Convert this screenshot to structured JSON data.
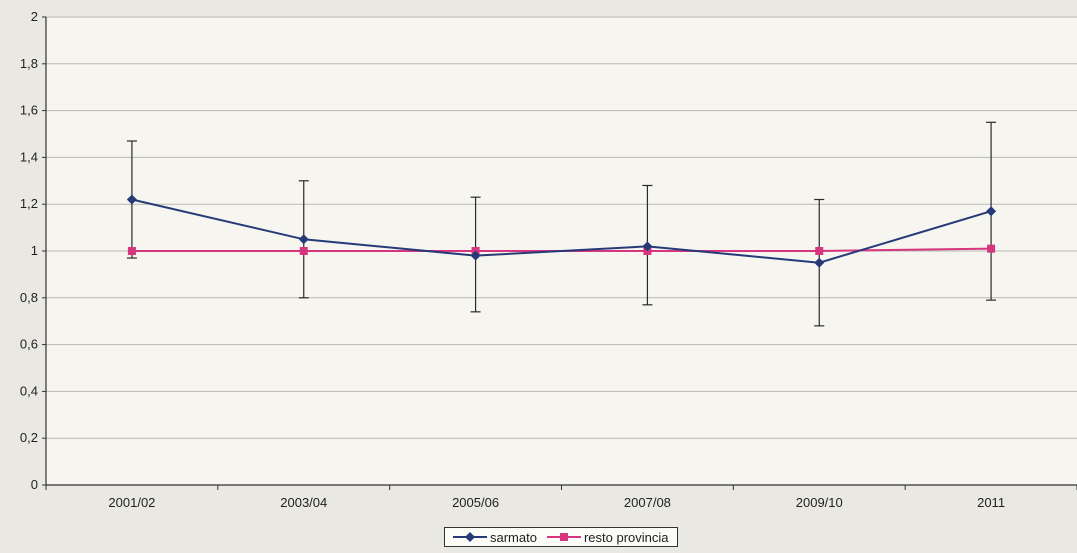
{
  "chart_data": {
    "type": "line",
    "categories": [
      "2001/02",
      "2003/04",
      "2005/06",
      "2007/08",
      "2009/10",
      "2011"
    ],
    "ylim": [
      0,
      2
    ],
    "yticks": [
      "0",
      "0,2",
      "0,4",
      "0,6",
      "0,8",
      "1",
      "1,2",
      "1,4",
      "1,6",
      "1,8",
      "2"
    ],
    "ytick_values": [
      0,
      0.2,
      0.4,
      0.6,
      0.8,
      1.0,
      1.2,
      1.4,
      1.6,
      1.8,
      2.0
    ],
    "grid": true,
    "legend_position": "bottom",
    "series": [
      {
        "name": "sarmato",
        "color": "#263a78",
        "marker": "diamond",
        "values": [
          1.22,
          1.05,
          0.98,
          1.02,
          0.95,
          1.17
        ],
        "error_low": [
          0.97,
          0.8,
          0.74,
          0.77,
          0.68,
          0.79
        ],
        "error_high": [
          1.47,
          1.3,
          1.23,
          1.28,
          1.22,
          1.55
        ]
      },
      {
        "name": "resto provincia",
        "color": "#d6357f",
        "marker": "square",
        "values": [
          1.0,
          1.0,
          1.0,
          1.0,
          1.0,
          1.01
        ]
      }
    ]
  }
}
